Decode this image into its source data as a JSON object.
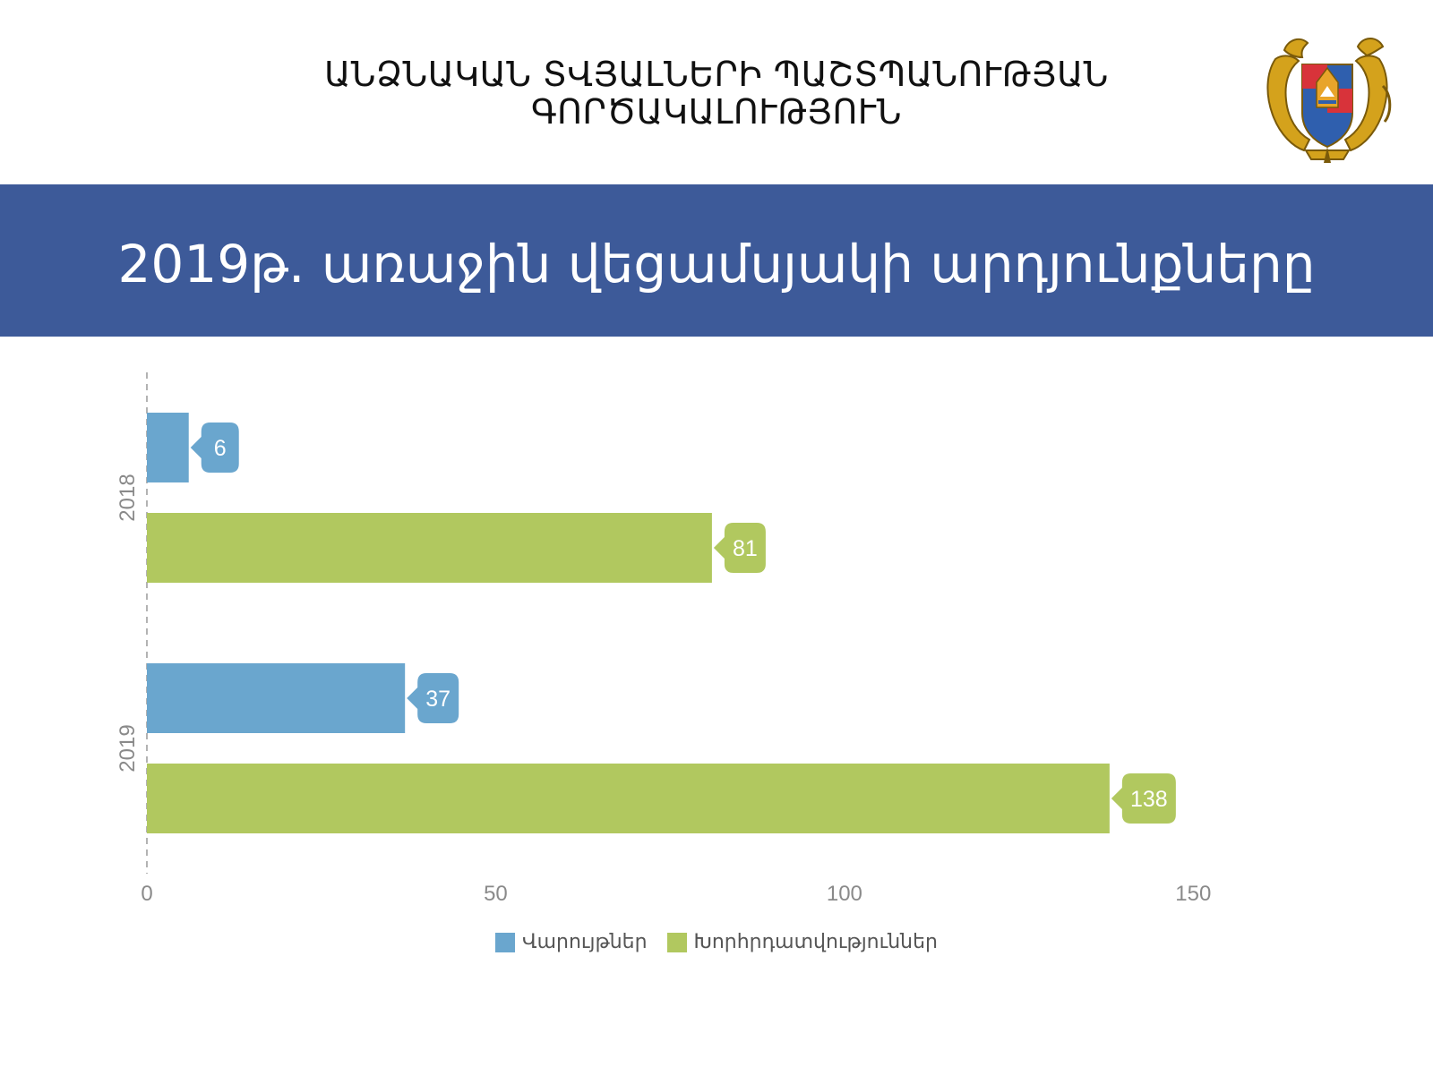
{
  "header": {
    "org_line1": "ԱՆՁՆԱԿԱՆ ՏՎՅԱԼՆԵՐԻ ՊԱՇՏՊԱՆՈՒԹՅԱՆ",
    "org_line2": "ԳՈՐԾԱԿԱԼՈՒԹՅՈՒՆ"
  },
  "banner": {
    "title": "2019թ. առաջին վեցամսյակի արդյունքները"
  },
  "colors": {
    "banner": "#3d5a99",
    "series_blue": "#6aa6ce",
    "series_green": "#b1c85f"
  },
  "chart_data": {
    "type": "bar",
    "orientation": "horizontal",
    "categories": [
      "2018",
      "2019"
    ],
    "series": [
      {
        "name": "Վարույթներ",
        "color": "#6aa6ce",
        "values": [
          6,
          37
        ]
      },
      {
        "name": "Խորհրդատվություններ",
        "color": "#b1c85f",
        "values": [
          81,
          138
        ]
      }
    ],
    "xticks": [
      0,
      50,
      100,
      150
    ],
    "xlim": [
      0,
      180
    ],
    "data_labels": true,
    "legend": "bottom",
    "grid": false
  }
}
